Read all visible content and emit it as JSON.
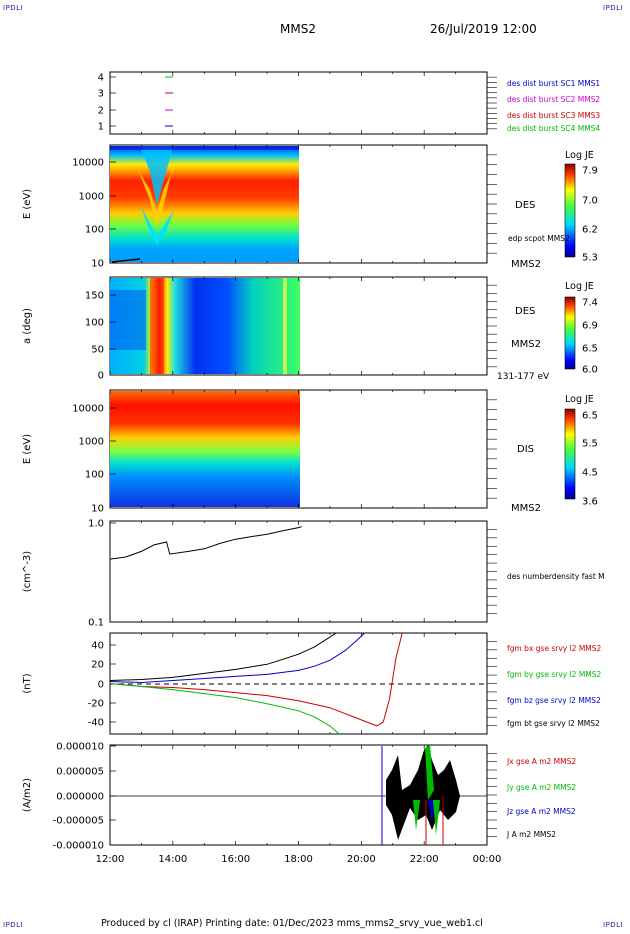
{
  "corner_label": "IPDLI",
  "header": {
    "spacecraft": "MMS2",
    "date": "26/Jul/2019 12:00"
  },
  "footer": "Produced by cl (IRAP)   Printing date: 01/Dec/2023   mms_mms2_srvy_vue_web1.cl",
  "chart_data": [
    {
      "type": "line",
      "panel": "status",
      "ytick_labels": [
        "4",
        "3",
        "2",
        "1"
      ],
      "legend": [
        {
          "label": "des dist burst SC1 MMS1",
          "color": "#0000cc"
        },
        {
          "label": "des dist burst SC2 MMS2",
          "color": "#cc00cc"
        },
        {
          "label": "des dist burst SC3 MMS3",
          "color": "#cc0000"
        },
        {
          "label": "des dist burst SC4 MMS4",
          "color": "#00bb00"
        }
      ]
    },
    {
      "type": "heatmap",
      "panel": "des-energy",
      "ylabel": "E (eV)",
      "ytick_labels": [
        "10000",
        "1000",
        "100",
        "10"
      ],
      "yscale": "log",
      "ylim": [
        10,
        30000
      ],
      "side_labels": [
        "DES",
        "edp scpot MMS2",
        "MMS2"
      ],
      "colorbar": {
        "title": "Log JE",
        "tick_labels": [
          "7.9",
          "7.0",
          "6.2",
          "5.3"
        ]
      }
    },
    {
      "type": "heatmap",
      "panel": "des-pitch",
      "ylabel": "a (deg)",
      "ytick_labels": [
        "150",
        "100",
        "50",
        "0"
      ],
      "ylim": [
        0,
        180
      ],
      "side_labels": [
        "DES",
        "MMS2",
        "131-177 eV"
      ],
      "colorbar": {
        "title": "Log JE",
        "tick_labels": [
          "7.4",
          "6.9",
          "6.5",
          "6.0"
        ]
      }
    },
    {
      "type": "heatmap",
      "panel": "dis-energy",
      "ylabel": "E (eV)",
      "ytick_labels": [
        "10000",
        "1000",
        "100",
        "10"
      ],
      "yscale": "log",
      "ylim": [
        10,
        30000
      ],
      "side_labels": [
        "DIS",
        "MMS2"
      ],
      "colorbar": {
        "title": "Log JE",
        "tick_labels": [
          "6.5",
          "5.5",
          "4.5",
          "3.6"
        ]
      }
    },
    {
      "type": "line",
      "panel": "density",
      "ylabel": "(cm^-3)",
      "ytick_labels": [
        "1.0",
        "0.1"
      ],
      "yscale": "log",
      "ylim": [
        0.1,
        1.0
      ],
      "legend": [
        {
          "label": "des numberdensity fast M",
          "color": "#000000"
        }
      ],
      "series": [
        {
          "name": "des numberdensity fast M",
          "color": "#000000",
          "x": [
            12.0,
            12.5,
            13.0,
            13.4,
            13.8,
            13.9,
            14.5,
            15.0,
            15.5,
            16.0,
            16.5,
            17.0,
            17.5,
            18.0,
            18.1
          ],
          "values": [
            0.42,
            0.44,
            0.5,
            0.58,
            0.62,
            0.47,
            0.5,
            0.53,
            0.6,
            0.66,
            0.7,
            0.74,
            0.8,
            0.86,
            0.88
          ]
        }
      ]
    },
    {
      "type": "line",
      "panel": "magnetic-field",
      "ylabel": "(nT)",
      "ytick_labels": [
        "40",
        "20",
        "0",
        "-20",
        "-40"
      ],
      "ylim": [
        -50,
        50
      ],
      "legend": [
        {
          "label": "fgm bx gse srvy l2 MMS2",
          "color": "#cc0000"
        },
        {
          "label": "fgm by gse srvy l2 MMS2",
          "color": "#00bb00"
        },
        {
          "label": "fgm bz gse srvy l2 MMS2",
          "color": "#0000cc"
        },
        {
          "label": "fgm bt gse srvy l2 MMS2",
          "color": "#000000"
        }
      ],
      "series": [
        {
          "name": "fgm bx gse srvy l2 MMS2",
          "color": "#cc0000",
          "x": [
            12.0,
            13.0,
            14.0,
            15.0,
            16.0,
            17.0,
            18.0,
            19.0,
            20.0,
            20.5,
            20.7,
            20.9,
            21.1,
            21.3
          ],
          "values": [
            0,
            -3,
            -4,
            -6,
            -9,
            -12,
            -17,
            -24,
            -36,
            -42,
            -38,
            -15,
            25,
            55
          ]
        },
        {
          "name": "fgm by gse srvy l2 MMS2",
          "color": "#00bb00",
          "x": [
            12.0,
            13.0,
            14.0,
            15.0,
            16.0,
            17.0,
            18.0,
            18.5,
            19.0,
            19.3
          ],
          "values": [
            0,
            -3,
            -6,
            -10,
            -14,
            -20,
            -27,
            -33,
            -42,
            -50
          ]
        },
        {
          "name": "fgm bz gse srvy l2 MMS2",
          "color": "#0000cc",
          "x": [
            12.0,
            13.0,
            14.0,
            15.0,
            16.0,
            17.0,
            18.0,
            18.5,
            19.0,
            19.5,
            19.9,
            20.1
          ],
          "values": [
            2,
            1,
            3,
            5,
            7,
            9,
            13,
            17,
            23,
            33,
            44,
            52
          ]
        },
        {
          "name": "fgm bt gse srvy l2 MMS2",
          "color": "#000000",
          "x": [
            12.0,
            13.0,
            14.0,
            15.0,
            16.0,
            17.0,
            17.5,
            18.0,
            18.5,
            18.9,
            19.2
          ],
          "values": [
            3,
            4,
            6,
            10,
            14,
            19,
            24,
            29,
            36,
            44,
            52
          ]
        }
      ]
    },
    {
      "type": "line",
      "panel": "current-density",
      "ylabel": "(A/m2)",
      "ytick_labels": [
        "0.000010",
        "0.000005",
        "0.000000",
        "-0.000005",
        "-0.000010"
      ],
      "ylim": [
        -1e-05,
        1e-05
      ],
      "xtick_labels": [
        "12:00",
        "14:00",
        "16:00",
        "18:00",
        "20:00",
        "22:00",
        "00:00"
      ],
      "legend": [
        {
          "label": "Jx gse A m2 MMS2",
          "color": "#cc0000"
        },
        {
          "label": "Jy gse A m2 MMS2",
          "color": "#00bb00"
        },
        {
          "label": "Jz gse A m2 MMS2",
          "color": "#0000cc"
        },
        {
          "label": "J A m2 MMS2",
          "color": "#000000"
        }
      ]
    }
  ]
}
